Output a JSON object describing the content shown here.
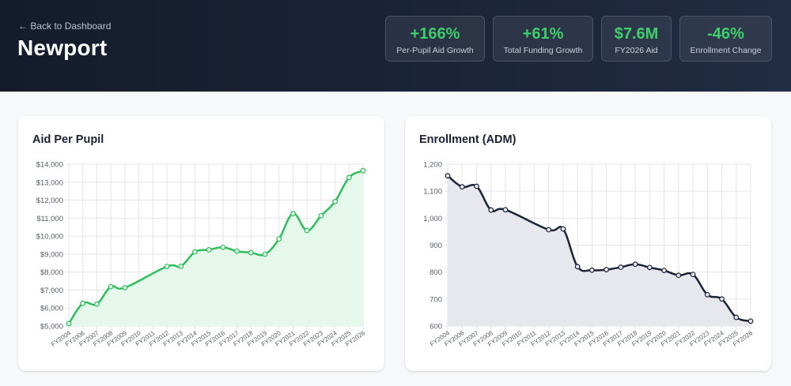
{
  "header": {
    "back_label": "← Back to Dashboard",
    "title": "Newport"
  },
  "stats": [
    {
      "value": "+166%",
      "label": "Per-Pupil Aid Growth"
    },
    {
      "value": "+61%",
      "label": "Total Funding Growth"
    },
    {
      "value": "$7.6M",
      "label": "FY2026 Aid"
    },
    {
      "value": "-46%",
      "label": "Enrollment Change"
    }
  ],
  "chart_data": [
    {
      "type": "area",
      "title": "Aid Per Pupil",
      "xlabel": "",
      "ylabel": "",
      "ylim": [
        5000,
        14000
      ],
      "yticks": [
        5000,
        6000,
        7000,
        8000,
        9000,
        10000,
        11000,
        12000,
        13000,
        14000
      ],
      "ytick_labels": [
        "$5,000",
        "$6,000",
        "$7,000",
        "$8,000",
        "$9,000",
        "$10,000",
        "$11,000",
        "$12,000",
        "$13,000",
        "$14,000"
      ],
      "grid": true,
      "color": "#2fbe5c",
      "fill": "#e6f7ec",
      "x": [
        "FY2004",
        "FY2006",
        "FY2007",
        "FY2008",
        "FY2009",
        "FY2010",
        "FY2011",
        "FY2012",
        "FY2013",
        "FY2014",
        "FY2015",
        "FY2016",
        "FY2017",
        "FY2018",
        "FY2019",
        "FY2020",
        "FY2021",
        "FY2022",
        "FY2023",
        "FY2024",
        "FY2025",
        "FY2026"
      ],
      "values": [
        5130,
        6260,
        6220,
        7190,
        7130,
        null,
        null,
        8310,
        8320,
        9120,
        9240,
        9380,
        9160,
        9080,
        8990,
        9840,
        11250,
        10310,
        11130,
        11920,
        13260,
        13640
      ]
    },
    {
      "type": "area",
      "title": "Enrollment (ADM)",
      "xlabel": "",
      "ylabel": "",
      "ylim": [
        600,
        1200
      ],
      "yticks": [
        600,
        700,
        800,
        900,
        1000,
        1100,
        1200
      ],
      "ytick_labels": [
        "600",
        "700",
        "800",
        "900",
        "1,000",
        "1,100",
        "1,200"
      ],
      "grid": true,
      "color": "#1c2438",
      "fill": "#e7e8ed",
      "x": [
        "FY2004",
        "FY2006",
        "FY2007",
        "FY2008",
        "FY2009",
        "FY2010",
        "FY2011",
        "FY2012",
        "FY2013",
        "FY2014",
        "FY2015",
        "FY2016",
        "FY2017",
        "FY2018",
        "FY2019",
        "FY2020",
        "FY2021",
        "FY2022",
        "FY2023",
        "FY2024",
        "FY2025",
        "FY2026"
      ],
      "values": [
        1157,
        1116,
        1118,
        1030,
        1031,
        null,
        null,
        957,
        960,
        820,
        807,
        809,
        818,
        829,
        817,
        806,
        788,
        791,
        716,
        700,
        632,
        618
      ]
    }
  ]
}
